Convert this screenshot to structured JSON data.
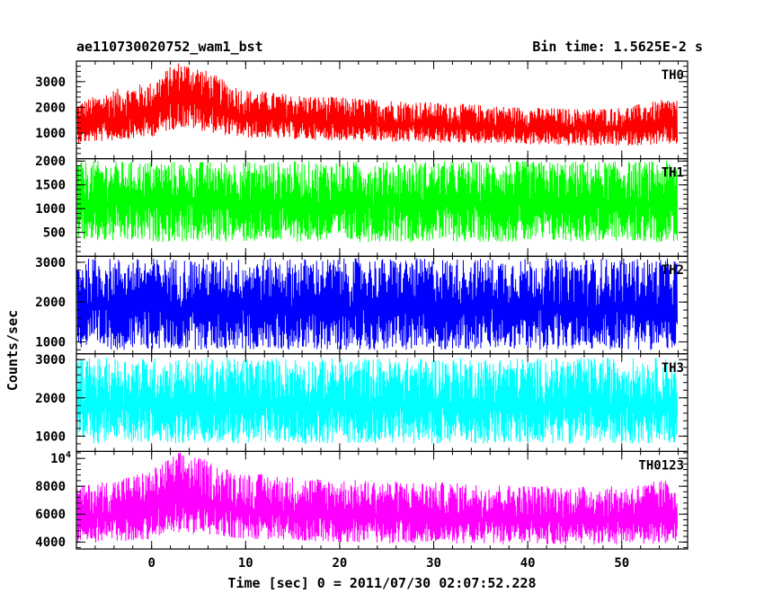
{
  "header": {
    "title": "ae110730020752_wam1_bst",
    "bin_time": "Bin time: 1.5625E-2 s"
  },
  "axes": {
    "ylabel": "Counts/sec",
    "xlabel": "Time [sec] 0 = 2011/07/30 02:07:52.228"
  },
  "chart_data": {
    "type": "line",
    "x_range": [
      -8,
      57
    ],
    "x_ticks": [
      0,
      10,
      20,
      30,
      40,
      50
    ],
    "x_tick_labels": [
      "0",
      "10",
      "20",
      "30",
      "40",
      "50"
    ],
    "data_x_range": [
      -7.9,
      55.9
    ],
    "panels": [
      {
        "name": "TH0",
        "color": "#ff0000",
        "ylim": [
          0,
          3800
        ],
        "yticks": [
          1000,
          2000,
          3000
        ],
        "ytick_labels": [
          "1000",
          "2000",
          "3000"
        ],
        "envelope": {
          "x": [
            -7.9,
            -4,
            0,
            2,
            3,
            5,
            8,
            10,
            15,
            20,
            25,
            30,
            35,
            40,
            45,
            50,
            55.9
          ],
          "mean": [
            1300,
            1500,
            1700,
            2300,
            2500,
            2300,
            1800,
            1600,
            1500,
            1400,
            1350,
            1300,
            1250,
            1200,
            1150,
            1150,
            1300
          ],
          "low": [
            600,
            700,
            850,
            1100,
            1200,
            1100,
            900,
            800,
            750,
            700,
            650,
            600,
            600,
            550,
            500,
            500,
            550
          ],
          "high": [
            2200,
            2700,
            3000,
            3600,
            3800,
            3600,
            3000,
            2700,
            2500,
            2400,
            2300,
            2200,
            2100,
            2000,
            1950,
            2000,
            2400
          ]
        }
      },
      {
        "name": "TH1",
        "color": "#00ff00",
        "ylim": [
          0,
          2050
        ],
        "yticks": [
          500,
          1000,
          1500,
          2000
        ],
        "ytick_labels": [
          "500",
          "1000",
          "1500",
          "2000"
        ],
        "envelope": {
          "x": [
            -7.9,
            55.9
          ],
          "mean": [
            1100,
            1100
          ],
          "low": [
            300,
            300
          ],
          "high": [
            2000,
            2000
          ]
        }
      },
      {
        "name": "TH2",
        "color": "#0000ff",
        "ylim": [
          700,
          3150
        ],
        "yticks": [
          1000,
          2000,
          3000
        ],
        "ytick_labels": [
          "1000",
          "2000",
          "3000"
        ],
        "envelope": {
          "x": [
            -7.9,
            55.9
          ],
          "mean": [
            1850,
            1850
          ],
          "low": [
            800,
            800
          ],
          "high": [
            3100,
            3100
          ]
        }
      },
      {
        "name": "TH3",
        "color": "#00ffff",
        "ylim": [
          600,
          3150
        ],
        "yticks": [
          1000,
          2000,
          3000
        ],
        "ytick_labels": [
          "1000",
          "2000",
          "3000"
        ],
        "envelope": {
          "x": [
            -7.9,
            55.9
          ],
          "mean": [
            1800,
            1800
          ],
          "low": [
            800,
            800
          ],
          "high": [
            3050,
            3050
          ]
        }
      },
      {
        "name": "TH0123",
        "color": "#ff00ff",
        "ylim": [
          3500,
          10500
        ],
        "yticks": [
          4000,
          6000,
          8000,
          10000
        ],
        "ytick_labels": [
          "4000",
          "6000",
          "8000",
          "10^4"
        ],
        "envelope": {
          "x": [
            -7.9,
            -4,
            0,
            2,
            3,
            5,
            8,
            10,
            15,
            20,
            25,
            30,
            35,
            40,
            45,
            50,
            55.9
          ],
          "mean": [
            5800,
            6000,
            6300,
            6900,
            7100,
            6900,
            6400,
            6200,
            6000,
            5900,
            5800,
            5750,
            5700,
            5650,
            5600,
            5600,
            5700
          ],
          "low": [
            3900,
            4000,
            4200,
            4500,
            4700,
            4500,
            4300,
            4200,
            4100,
            4000,
            3900,
            3900,
            3850,
            3800,
            3800,
            3800,
            3900
          ],
          "high": [
            8000,
            8500,
            9200,
            10100,
            10500,
            10100,
            9300,
            9000,
            8700,
            8500,
            8400,
            8300,
            8200,
            8100,
            8000,
            8000,
            8600
          ]
        }
      }
    ]
  }
}
